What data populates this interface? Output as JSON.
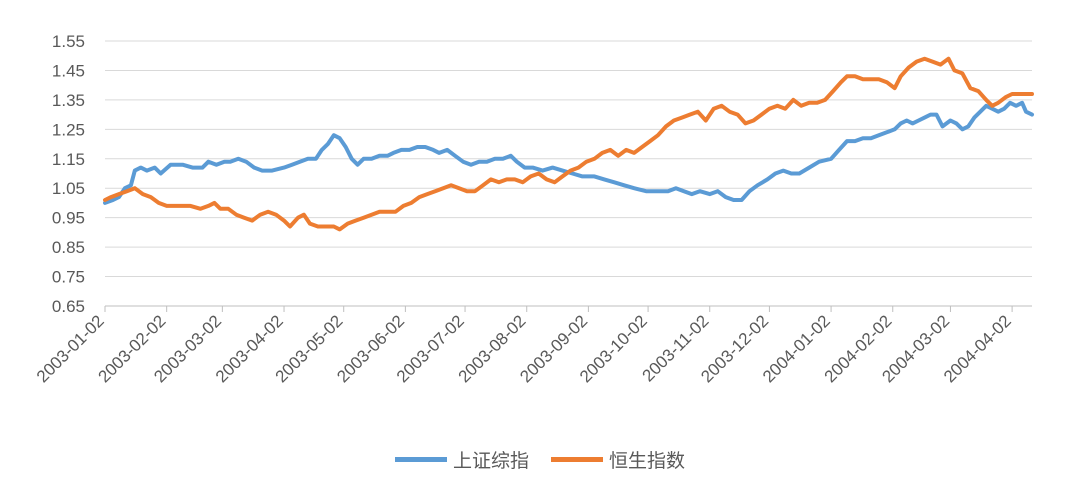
{
  "chart_data": {
    "type": "line",
    "title": "",
    "xlabel": "",
    "ylabel": "",
    "ylim": [
      0.65,
      1.55
    ],
    "y_ticks": [
      "0.65",
      "0.75",
      "0.85",
      "0.95",
      "1.05",
      "1.15",
      "1.25",
      "1.35",
      "1.45",
      "1.55"
    ],
    "x_range": [
      "2003-01-02",
      "2004-04-12"
    ],
    "x_ticks": [
      "2003-01-02",
      "2003-02-02",
      "2003-03-02",
      "2003-04-02",
      "2003-05-02",
      "2003-06-02",
      "2003-07-02",
      "2003-08-02",
      "2003-09-02",
      "2003-10-02",
      "2003-11-02",
      "2003-12-02",
      "2004-01-02",
      "2004-02-02",
      "2004-03-02",
      "2004-04-02"
    ],
    "grid": true,
    "legend_position": "bottom",
    "series": [
      {
        "name": "上证综指",
        "color": "#5B9BD5",
        "points": [
          [
            "2003-01-02",
            1.0
          ],
          [
            "2003-01-06",
            1.01
          ],
          [
            "2003-01-09",
            1.02
          ],
          [
            "2003-01-12",
            1.05
          ],
          [
            "2003-01-15",
            1.06
          ],
          [
            "2003-01-17",
            1.11
          ],
          [
            "2003-01-20",
            1.12
          ],
          [
            "2003-01-23",
            1.11
          ],
          [
            "2003-01-27",
            1.12
          ],
          [
            "2003-01-30",
            1.1
          ],
          [
            "2003-02-04",
            1.13
          ],
          [
            "2003-02-10",
            1.13
          ],
          [
            "2003-02-15",
            1.12
          ],
          [
            "2003-02-20",
            1.12
          ],
          [
            "2003-02-23",
            1.14
          ],
          [
            "2003-02-27",
            1.13
          ],
          [
            "2003-03-03",
            1.14
          ],
          [
            "2003-03-06",
            1.14
          ],
          [
            "2003-03-10",
            1.15
          ],
          [
            "2003-03-14",
            1.14
          ],
          [
            "2003-03-18",
            1.12
          ],
          [
            "2003-03-22",
            1.11
          ],
          [
            "2003-03-27",
            1.11
          ],
          [
            "2003-04-02",
            1.12
          ],
          [
            "2003-04-06",
            1.13
          ],
          [
            "2003-04-10",
            1.14
          ],
          [
            "2003-04-14",
            1.15
          ],
          [
            "2003-04-18",
            1.15
          ],
          [
            "2003-04-21",
            1.18
          ],
          [
            "2003-04-24",
            1.2
          ],
          [
            "2003-04-27",
            1.23
          ],
          [
            "2003-04-30",
            1.22
          ],
          [
            "2003-05-03",
            1.19
          ],
          [
            "2003-05-06",
            1.15
          ],
          [
            "2003-05-09",
            1.13
          ],
          [
            "2003-05-12",
            1.15
          ],
          [
            "2003-05-16",
            1.15
          ],
          [
            "2003-05-20",
            1.16
          ],
          [
            "2003-05-24",
            1.16
          ],
          [
            "2003-05-27",
            1.17
          ],
          [
            "2003-05-31",
            1.18
          ],
          [
            "2003-06-04",
            1.18
          ],
          [
            "2003-06-08",
            1.19
          ],
          [
            "2003-06-12",
            1.19
          ],
          [
            "2003-06-16",
            1.18
          ],
          [
            "2003-06-19",
            1.17
          ],
          [
            "2003-06-23",
            1.18
          ],
          [
            "2003-06-27",
            1.16
          ],
          [
            "2003-07-01",
            1.14
          ],
          [
            "2003-07-05",
            1.13
          ],
          [
            "2003-07-09",
            1.14
          ],
          [
            "2003-07-13",
            1.14
          ],
          [
            "2003-07-17",
            1.15
          ],
          [
            "2003-07-21",
            1.15
          ],
          [
            "2003-07-25",
            1.16
          ],
          [
            "2003-07-28",
            1.14
          ],
          [
            "2003-08-01",
            1.12
          ],
          [
            "2003-08-05",
            1.12
          ],
          [
            "2003-08-10",
            1.11
          ],
          [
            "2003-08-15",
            1.12
          ],
          [
            "2003-08-20",
            1.11
          ],
          [
            "2003-08-25",
            1.1
          ],
          [
            "2003-08-30",
            1.09
          ],
          [
            "2003-09-05",
            1.09
          ],
          [
            "2003-09-10",
            1.08
          ],
          [
            "2003-09-15",
            1.07
          ],
          [
            "2003-09-20",
            1.06
          ],
          [
            "2003-09-25",
            1.05
          ],
          [
            "2003-10-01",
            1.04
          ],
          [
            "2003-10-07",
            1.04
          ],
          [
            "2003-10-12",
            1.04
          ],
          [
            "2003-10-16",
            1.05
          ],
          [
            "2003-10-20",
            1.04
          ],
          [
            "2003-10-24",
            1.03
          ],
          [
            "2003-10-28",
            1.04
          ],
          [
            "2003-11-02",
            1.03
          ],
          [
            "2003-11-06",
            1.04
          ],
          [
            "2003-11-10",
            1.02
          ],
          [
            "2003-11-14",
            1.01
          ],
          [
            "2003-11-18",
            1.01
          ],
          [
            "2003-11-22",
            1.04
          ],
          [
            "2003-11-26",
            1.06
          ],
          [
            "2003-12-01",
            1.08
          ],
          [
            "2003-12-05",
            1.1
          ],
          [
            "2003-12-09",
            1.11
          ],
          [
            "2003-12-13",
            1.1
          ],
          [
            "2003-12-17",
            1.1
          ],
          [
            "2003-12-22",
            1.12
          ],
          [
            "2003-12-27",
            1.14
          ],
          [
            "2004-01-02",
            1.15
          ],
          [
            "2004-01-06",
            1.18
          ],
          [
            "2004-01-10",
            1.21
          ],
          [
            "2004-01-14",
            1.21
          ],
          [
            "2004-01-18",
            1.22
          ],
          [
            "2004-01-22",
            1.22
          ],
          [
            "2004-01-26",
            1.23
          ],
          [
            "2004-01-30",
            1.24
          ],
          [
            "2004-02-03",
            1.25
          ],
          [
            "2004-02-06",
            1.27
          ],
          [
            "2004-02-09",
            1.28
          ],
          [
            "2004-02-12",
            1.27
          ],
          [
            "2004-02-15",
            1.28
          ],
          [
            "2004-02-18",
            1.29
          ],
          [
            "2004-02-21",
            1.3
          ],
          [
            "2004-02-24",
            1.3
          ],
          [
            "2004-02-27",
            1.26
          ],
          [
            "2004-03-02",
            1.28
          ],
          [
            "2004-03-05",
            1.27
          ],
          [
            "2004-03-08",
            1.25
          ],
          [
            "2004-03-11",
            1.26
          ],
          [
            "2004-03-14",
            1.29
          ],
          [
            "2004-03-17",
            1.31
          ],
          [
            "2004-03-20",
            1.33
          ],
          [
            "2004-03-23",
            1.32
          ],
          [
            "2004-03-26",
            1.31
          ],
          [
            "2004-03-29",
            1.32
          ],
          [
            "2004-04-01",
            1.34
          ],
          [
            "2004-04-04",
            1.33
          ],
          [
            "2004-04-07",
            1.34
          ],
          [
            "2004-04-09",
            1.31
          ],
          [
            "2004-04-12",
            1.3
          ]
        ]
      },
      {
        "name": "恒生指数",
        "color": "#ED7D31",
        "points": [
          [
            "2003-01-02",
            1.01
          ],
          [
            "2003-01-05",
            1.02
          ],
          [
            "2003-01-09",
            1.03
          ],
          [
            "2003-01-13",
            1.04
          ],
          [
            "2003-01-17",
            1.05
          ],
          [
            "2003-01-21",
            1.03
          ],
          [
            "2003-01-25",
            1.02
          ],
          [
            "2003-01-29",
            1.0
          ],
          [
            "2003-02-02",
            0.99
          ],
          [
            "2003-02-08",
            0.99
          ],
          [
            "2003-02-14",
            0.99
          ],
          [
            "2003-02-19",
            0.98
          ],
          [
            "2003-02-23",
            0.99
          ],
          [
            "2003-02-26",
            1.0
          ],
          [
            "2003-03-01",
            0.98
          ],
          [
            "2003-03-05",
            0.98
          ],
          [
            "2003-03-09",
            0.96
          ],
          [
            "2003-03-13",
            0.95
          ],
          [
            "2003-03-17",
            0.94
          ],
          [
            "2003-03-21",
            0.96
          ],
          [
            "2003-03-25",
            0.97
          ],
          [
            "2003-03-29",
            0.96
          ],
          [
            "2003-04-02",
            0.94
          ],
          [
            "2003-04-05",
            0.92
          ],
          [
            "2003-04-09",
            0.95
          ],
          [
            "2003-04-12",
            0.96
          ],
          [
            "2003-04-15",
            0.93
          ],
          [
            "2003-04-19",
            0.92
          ],
          [
            "2003-04-23",
            0.92
          ],
          [
            "2003-04-27",
            0.92
          ],
          [
            "2003-04-30",
            0.91
          ],
          [
            "2003-05-04",
            0.93
          ],
          [
            "2003-05-08",
            0.94
          ],
          [
            "2003-05-12",
            0.95
          ],
          [
            "2003-05-16",
            0.96
          ],
          [
            "2003-05-20",
            0.97
          ],
          [
            "2003-05-24",
            0.97
          ],
          [
            "2003-05-28",
            0.97
          ],
          [
            "2003-06-01",
            0.99
          ],
          [
            "2003-06-05",
            1.0
          ],
          [
            "2003-06-09",
            1.02
          ],
          [
            "2003-06-13",
            1.03
          ],
          [
            "2003-06-17",
            1.04
          ],
          [
            "2003-06-21",
            1.05
          ],
          [
            "2003-06-25",
            1.06
          ],
          [
            "2003-06-29",
            1.05
          ],
          [
            "2003-07-03",
            1.04
          ],
          [
            "2003-07-07",
            1.04
          ],
          [
            "2003-07-11",
            1.06
          ],
          [
            "2003-07-15",
            1.08
          ],
          [
            "2003-07-19",
            1.07
          ],
          [
            "2003-07-23",
            1.08
          ],
          [
            "2003-07-27",
            1.08
          ],
          [
            "2003-07-31",
            1.07
          ],
          [
            "2003-08-04",
            1.09
          ],
          [
            "2003-08-08",
            1.1
          ],
          [
            "2003-08-12",
            1.08
          ],
          [
            "2003-08-16",
            1.07
          ],
          [
            "2003-08-20",
            1.09
          ],
          [
            "2003-08-24",
            1.11
          ],
          [
            "2003-08-28",
            1.12
          ],
          [
            "2003-09-01",
            1.14
          ],
          [
            "2003-09-05",
            1.15
          ],
          [
            "2003-09-09",
            1.17
          ],
          [
            "2003-09-13",
            1.18
          ],
          [
            "2003-09-17",
            1.16
          ],
          [
            "2003-09-21",
            1.18
          ],
          [
            "2003-09-25",
            1.17
          ],
          [
            "2003-09-29",
            1.19
          ],
          [
            "2003-10-03",
            1.21
          ],
          [
            "2003-10-07",
            1.23
          ],
          [
            "2003-10-11",
            1.26
          ],
          [
            "2003-10-15",
            1.28
          ],
          [
            "2003-10-19",
            1.29
          ],
          [
            "2003-10-23",
            1.3
          ],
          [
            "2003-10-27",
            1.31
          ],
          [
            "2003-10-31",
            1.28
          ],
          [
            "2003-11-04",
            1.32
          ],
          [
            "2003-11-08",
            1.33
          ],
          [
            "2003-11-12",
            1.31
          ],
          [
            "2003-11-16",
            1.3
          ],
          [
            "2003-11-20",
            1.27
          ],
          [
            "2003-11-24",
            1.28
          ],
          [
            "2003-11-28",
            1.3
          ],
          [
            "2003-12-02",
            1.32
          ],
          [
            "2003-12-06",
            1.33
          ],
          [
            "2003-12-10",
            1.32
          ],
          [
            "2003-12-14",
            1.35
          ],
          [
            "2003-12-18",
            1.33
          ],
          [
            "2003-12-22",
            1.34
          ],
          [
            "2003-12-26",
            1.34
          ],
          [
            "2003-12-30",
            1.35
          ],
          [
            "2004-01-03",
            1.38
          ],
          [
            "2004-01-07",
            1.41
          ],
          [
            "2004-01-10",
            1.43
          ],
          [
            "2004-01-14",
            1.43
          ],
          [
            "2004-01-18",
            1.42
          ],
          [
            "2004-01-22",
            1.42
          ],
          [
            "2004-01-26",
            1.42
          ],
          [
            "2004-01-30",
            1.41
          ],
          [
            "2004-02-03",
            1.39
          ],
          [
            "2004-02-06",
            1.43
          ],
          [
            "2004-02-10",
            1.46
          ],
          [
            "2004-02-14",
            1.48
          ],
          [
            "2004-02-18",
            1.49
          ],
          [
            "2004-02-22",
            1.48
          ],
          [
            "2004-02-26",
            1.47
          ],
          [
            "2004-03-01",
            1.49
          ],
          [
            "2004-03-04",
            1.45
          ],
          [
            "2004-03-08",
            1.44
          ],
          [
            "2004-03-12",
            1.39
          ],
          [
            "2004-03-16",
            1.38
          ],
          [
            "2004-03-20",
            1.35
          ],
          [
            "2004-03-23",
            1.33
          ],
          [
            "2004-03-26",
            1.34
          ],
          [
            "2004-03-30",
            1.36
          ],
          [
            "2004-04-02",
            1.37
          ],
          [
            "2004-04-06",
            1.37
          ],
          [
            "2004-04-12",
            1.37
          ]
        ]
      }
    ]
  }
}
